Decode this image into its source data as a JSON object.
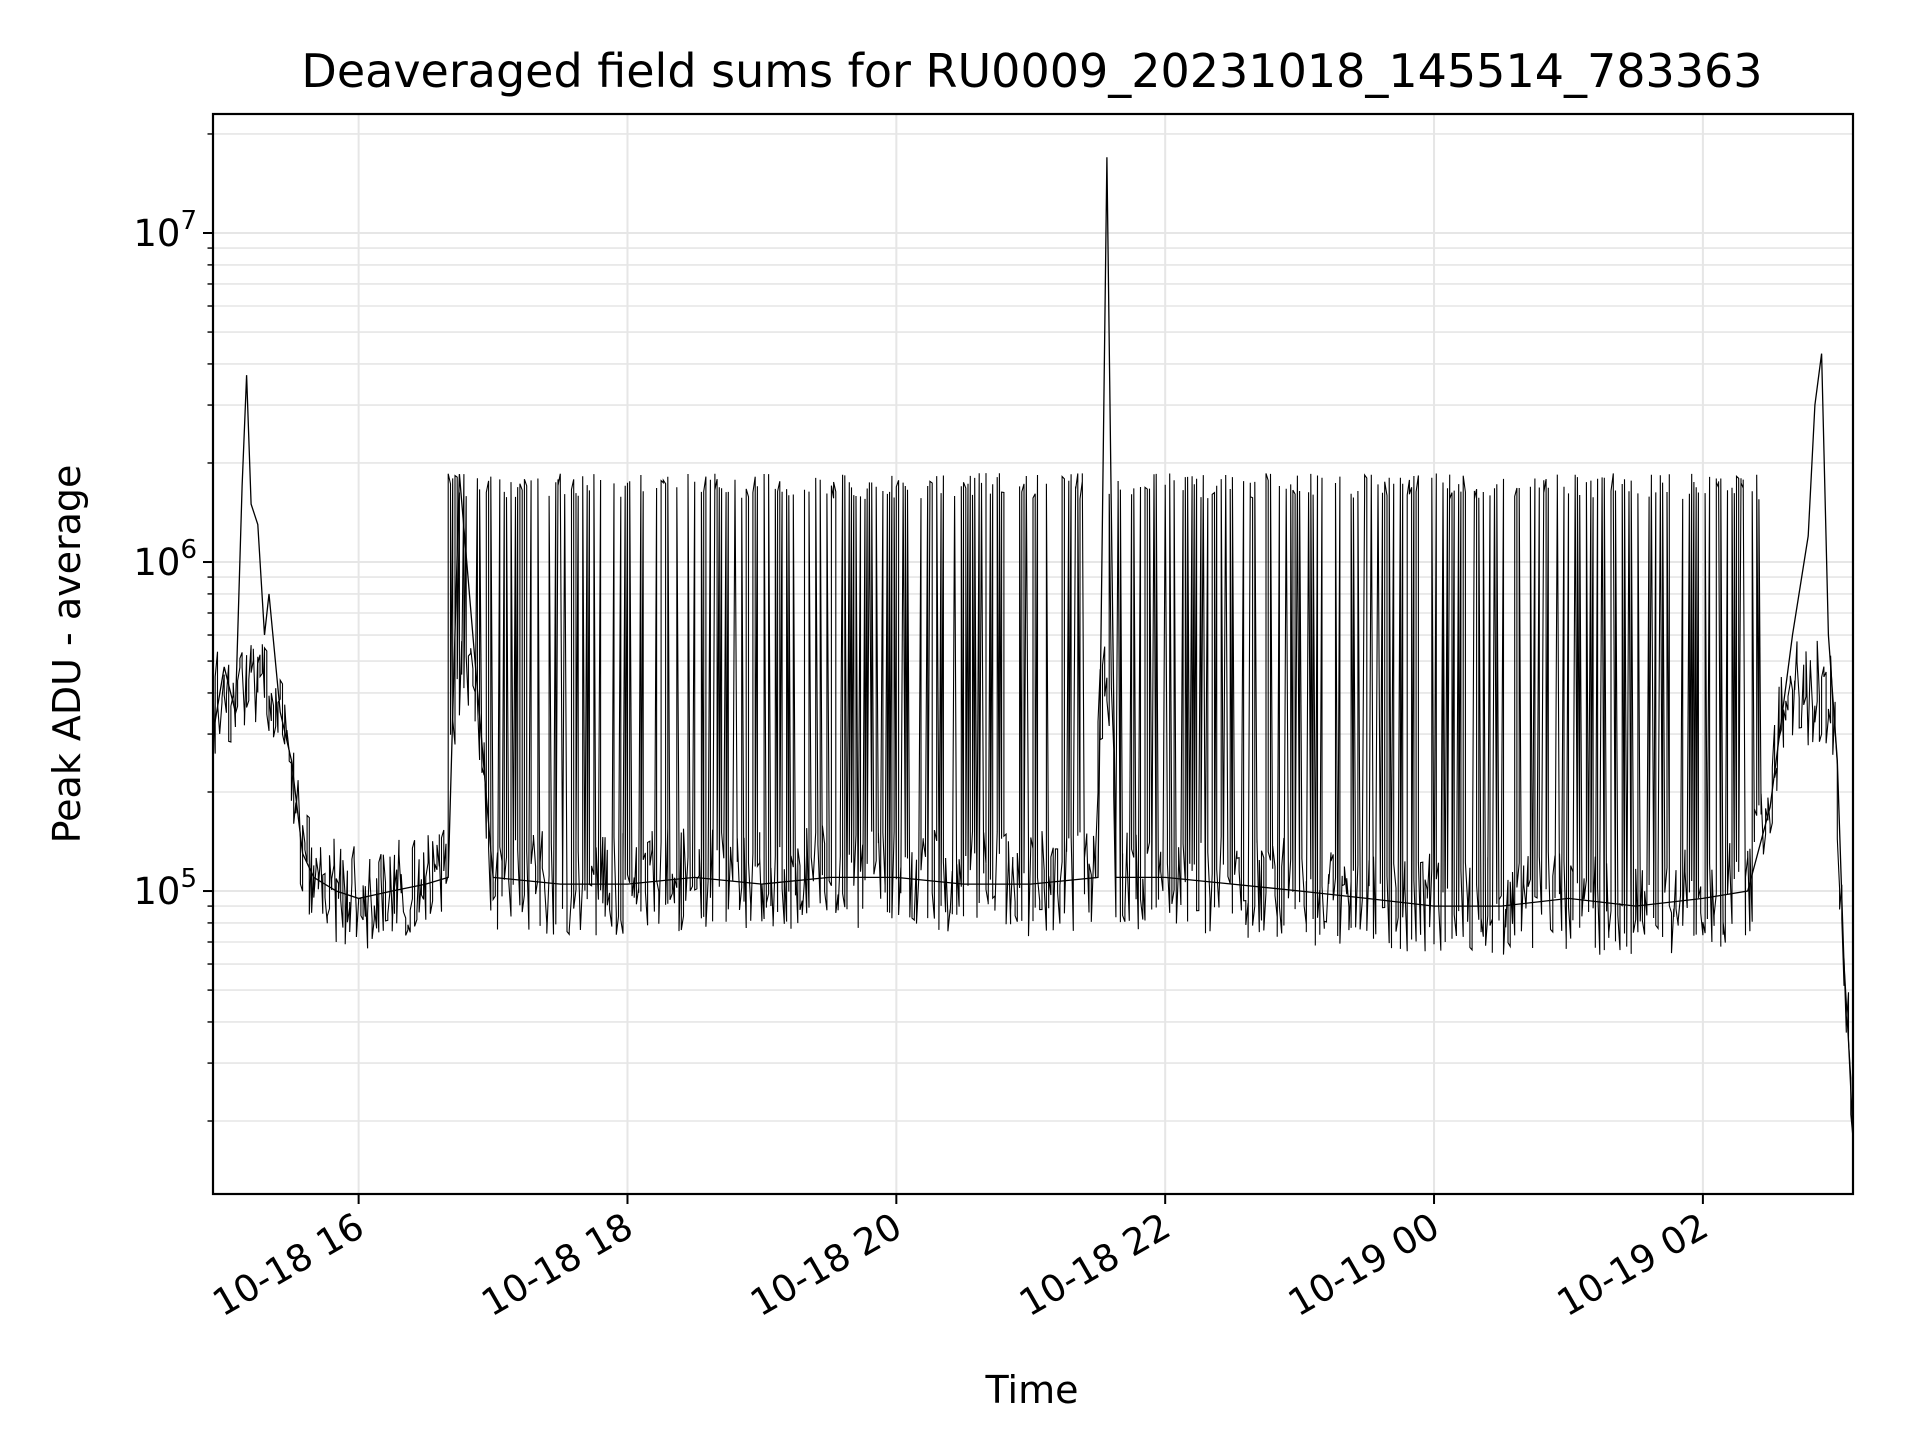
{
  "chart_data": {
    "type": "line",
    "title": "Deaveraged field sums for RU0009_20231018_145514_783363",
    "xlabel": "Time",
    "ylabel": "Peak ADU - average",
    "y_scale": "log",
    "xlim": [
      "2023-10-18 14:55",
      "2023-10-19 03:07"
    ],
    "ylim": [
      12000,
      23000000
    ],
    "x_ticks": [
      {
        "value": "2023-10-18 16:00",
        "label": "10-18 16"
      },
      {
        "value": "2023-10-18 18:00",
        "label": "10-18 18"
      },
      {
        "value": "2023-10-18 20:00",
        "label": "10-18 20"
      },
      {
        "value": "2023-10-18 22:00",
        "label": "10-18 22"
      },
      {
        "value": "2023-10-19 00:00",
        "label": "10-19 00"
      },
      {
        "value": "2023-10-19 02:00",
        "label": "10-19 02"
      }
    ],
    "y_ticks": [
      {
        "value": 100000,
        "base": "10",
        "exp": "5"
      },
      {
        "value": 1000000,
        "base": "10",
        "exp": "6"
      },
      {
        "value": 10000000,
        "base": "10",
        "exp": "7"
      }
    ],
    "grid": true,
    "line_color": "#000000",
    "grid_color": "#e6e6e6",
    "series": [
      {
        "x": [
          "2023-10-18 14:55",
          "2023-10-18 15:00",
          "2023-10-18 15:05",
          "2023-10-18 15:08",
          "2023-10-18 15:10",
          "2023-10-18 15:12",
          "2023-10-18 15:15",
          "2023-10-18 15:18",
          "2023-10-18 15:20",
          "2023-10-18 15:25",
          "2023-10-18 15:30",
          "2023-10-18 15:35",
          "2023-10-18 15:40",
          "2023-10-18 15:50",
          "2023-10-18 16:00",
          "2023-10-18 16:15",
          "2023-10-18 16:30",
          "2023-10-18 16:40",
          "2023-10-18 16:45",
          "2023-10-18 17:00",
          "2023-10-18 17:30",
          "2023-10-18 18:00",
          "2023-10-18 18:30",
          "2023-10-18 19:00",
          "2023-10-18 19:30",
          "2023-10-18 20:00",
          "2023-10-18 20:30",
          "2023-10-18 21:00",
          "2023-10-18 21:30",
          "2023-10-18 21:34",
          "2023-10-18 21:38",
          "2023-10-18 22:00",
          "2023-10-18 22:30",
          "2023-10-18 23:00",
          "2023-10-18 23:30",
          "2023-10-19 00:00",
          "2023-10-19 00:30",
          "2023-10-19 01:00",
          "2023-10-19 01:30",
          "2023-10-19 02:00",
          "2023-10-19 02:20",
          "2023-10-19 02:30",
          "2023-10-19 02:40",
          "2023-10-19 02:47",
          "2023-10-19 02:50",
          "2023-10-19 02:53",
          "2023-10-19 02:56",
          "2023-10-19 03:00",
          "2023-10-19 03:03",
          "2023-10-19 03:05",
          "2023-10-19 03:07"
        ],
        "y": [
          300000,
          480000,
          350000,
          1700000,
          3700000,
          1500000,
          1300000,
          600000,
          800000,
          350000,
          250000,
          130000,
          110000,
          100000,
          95000,
          100000,
          105000,
          110000,
          1850000,
          110000,
          105000,
          105000,
          110000,
          105000,
          110000,
          110000,
          105000,
          105000,
          110000,
          17000000,
          110000,
          110000,
          105000,
          100000,
          95000,
          90000,
          90000,
          95000,
          90000,
          95000,
          100000,
          180000,
          600000,
          1200000,
          3000000,
          4300000,
          600000,
          250000,
          60000,
          35000,
          18000
        ]
      }
    ]
  }
}
